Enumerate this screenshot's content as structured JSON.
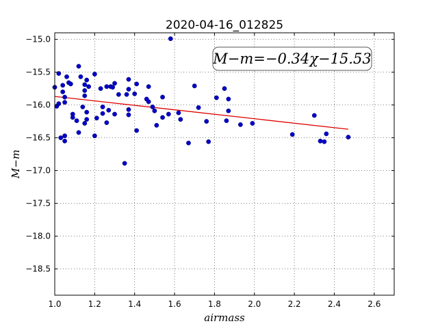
{
  "chart_data": {
    "type": "scatter",
    "title": "2020-04-16_012825",
    "xlabel": "airmass",
    "ylabel": "M−m",
    "xlim": [
      1.0,
      2.7
    ],
    "ylim": [
      -14.9,
      -18.9
    ],
    "xticks": [
      1.0,
      1.2,
      1.4,
      1.6,
      1.8,
      2.0,
      2.2,
      2.4,
      2.6
    ],
    "yticks": [
      -15.0,
      -15.5,
      -16.0,
      -16.5,
      -17.0,
      -17.5,
      -18.0,
      -18.5
    ],
    "grid": true,
    "annotation": "M−m=−0.34χ−15.53",
    "colors": {
      "points": "#0000cc",
      "fit": "#dd0000",
      "grid": "#555555"
    },
    "fit": {
      "slope": -0.34,
      "intercept": -15.53,
      "x": [
        1.0,
        2.47
      ]
    },
    "points": [
      {
        "x": 1.0,
        "y": -15.73
      },
      {
        "x": 1.01,
        "y": -16.02
      },
      {
        "x": 1.02,
        "y": -15.52
      },
      {
        "x": 1.02,
        "y": -15.98
      },
      {
        "x": 1.03,
        "y": -16.5
      },
      {
        "x": 1.04,
        "y": -15.7
      },
      {
        "x": 1.04,
        "y": -15.8
      },
      {
        "x": 1.05,
        "y": -15.96
      },
      {
        "x": 1.05,
        "y": -15.88
      },
      {
        "x": 1.05,
        "y": -16.55
      },
      {
        "x": 1.05,
        "y": -16.47
      },
      {
        "x": 1.06,
        "y": -15.57
      },
      {
        "x": 1.07,
        "y": -15.66
      },
      {
        "x": 1.08,
        "y": -15.68
      },
      {
        "x": 1.09,
        "y": -16.14
      },
      {
        "x": 1.09,
        "y": -16.19
      },
      {
        "x": 1.11,
        "y": -16.24
      },
      {
        "x": 1.12,
        "y": -15.41
      },
      {
        "x": 1.12,
        "y": -16.42
      },
      {
        "x": 1.13,
        "y": -15.57
      },
      {
        "x": 1.14,
        "y": -16.03
      },
      {
        "x": 1.15,
        "y": -15.69
      },
      {
        "x": 1.15,
        "y": -15.78
      },
      {
        "x": 1.15,
        "y": -15.86
      },
      {
        "x": 1.15,
        "y": -16.28
      },
      {
        "x": 1.16,
        "y": -16.22
      },
      {
        "x": 1.16,
        "y": -16.11
      },
      {
        "x": 1.16,
        "y": -15.62
      },
      {
        "x": 1.17,
        "y": -15.72
      },
      {
        "x": 1.2,
        "y": -15.53
      },
      {
        "x": 1.2,
        "y": -16.47
      },
      {
        "x": 1.21,
        "y": -16.2
      },
      {
        "x": 1.23,
        "y": -15.75
      },
      {
        "x": 1.24,
        "y": -16.13
      },
      {
        "x": 1.24,
        "y": -16.03
      },
      {
        "x": 1.26,
        "y": -15.72
      },
      {
        "x": 1.26,
        "y": -16.27
      },
      {
        "x": 1.27,
        "y": -16.08
      },
      {
        "x": 1.28,
        "y": -15.72
      },
      {
        "x": 1.29,
        "y": -15.73
      },
      {
        "x": 1.3,
        "y": -15.67
      },
      {
        "x": 1.3,
        "y": -16.14
      },
      {
        "x": 1.32,
        "y": -15.84
      },
      {
        "x": 1.35,
        "y": -16.89
      },
      {
        "x": 1.36,
        "y": -15.84
      },
      {
        "x": 1.37,
        "y": -15.76
      },
      {
        "x": 1.37,
        "y": -15.61
      },
      {
        "x": 1.37,
        "y": -16.07
      },
      {
        "x": 1.37,
        "y": -16.15
      },
      {
        "x": 1.4,
        "y": -15.83
      },
      {
        "x": 1.41,
        "y": -15.68
      },
      {
        "x": 1.41,
        "y": -16.39
      },
      {
        "x": 1.46,
        "y": -15.91
      },
      {
        "x": 1.47,
        "y": -15.95
      },
      {
        "x": 1.47,
        "y": -15.72
      },
      {
        "x": 1.49,
        "y": -16.03
      },
      {
        "x": 1.5,
        "y": -16.09
      },
      {
        "x": 1.51,
        "y": -16.31
      },
      {
        "x": 1.54,
        "y": -15.88
      },
      {
        "x": 1.54,
        "y": -16.19
      },
      {
        "x": 1.57,
        "y": -16.14
      },
      {
        "x": 1.58,
        "y": -14.99
      },
      {
        "x": 1.62,
        "y": -16.12
      },
      {
        "x": 1.63,
        "y": -16.22
      },
      {
        "x": 1.67,
        "y": -16.58
      },
      {
        "x": 1.7,
        "y": -15.71
      },
      {
        "x": 1.72,
        "y": -16.04
      },
      {
        "x": 1.76,
        "y": -16.25
      },
      {
        "x": 1.77,
        "y": -16.56
      },
      {
        "x": 1.81,
        "y": -15.89
      },
      {
        "x": 1.85,
        "y": -15.75
      },
      {
        "x": 1.86,
        "y": -16.24
      },
      {
        "x": 1.87,
        "y": -16.09
      },
      {
        "x": 1.87,
        "y": -15.91
      },
      {
        "x": 1.93,
        "y": -16.3
      },
      {
        "x": 1.99,
        "y": -16.28
      },
      {
        "x": 2.19,
        "y": -16.45
      },
      {
        "x": 2.3,
        "y": -16.16
      },
      {
        "x": 2.33,
        "y": -16.55
      },
      {
        "x": 2.35,
        "y": -16.56
      },
      {
        "x": 2.36,
        "y": -16.44
      },
      {
        "x": 2.47,
        "y": -16.49
      }
    ]
  }
}
